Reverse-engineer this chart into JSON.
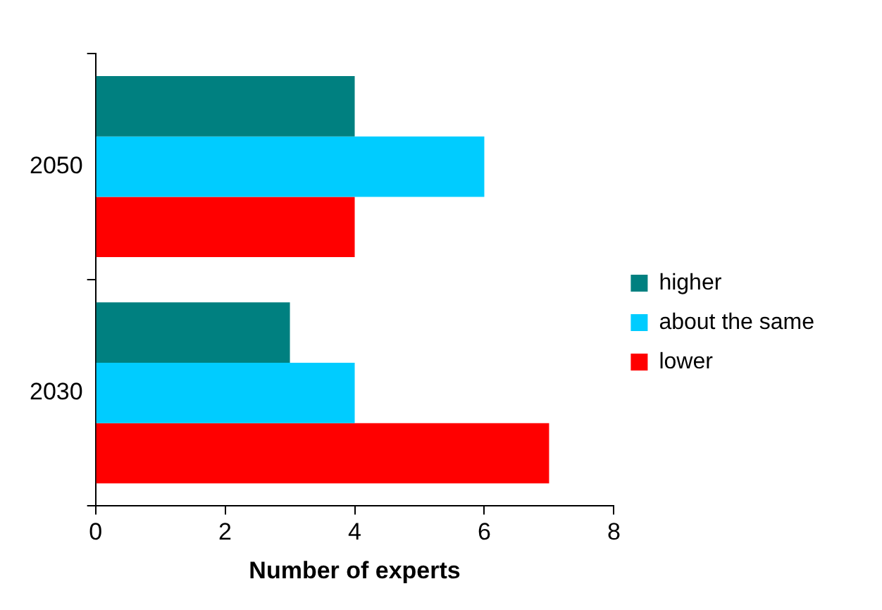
{
  "chart_data": {
    "type": "bar",
    "orientation": "horizontal",
    "categories": [
      "2050",
      "2030"
    ],
    "series": [
      {
        "name": "higher",
        "color": "#008080",
        "values": [
          4,
          3
        ]
      },
      {
        "name": "about the same",
        "color": "#00ccff",
        "values": [
          6,
          4
        ]
      },
      {
        "name": "lower",
        "color": "#ff0000",
        "values": [
          4,
          7
        ]
      }
    ],
    "xlabel": "Number of experts",
    "xlim": [
      0,
      8
    ],
    "xticks": [
      0,
      2,
      4,
      6,
      8
    ],
    "grid": false,
    "legend": "right"
  }
}
